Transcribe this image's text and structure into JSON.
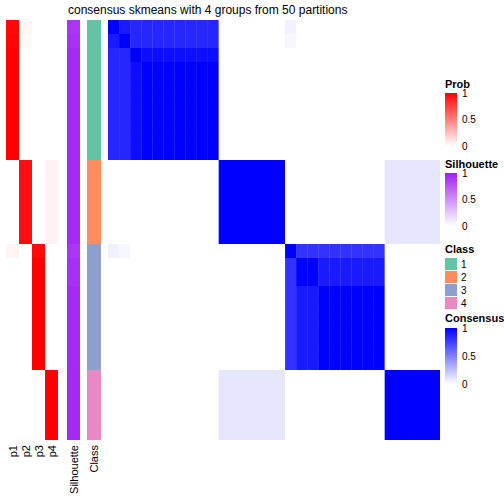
{
  "chart_data": {
    "type": "heatmap",
    "title": "consensus skmeans with 4 groups from 50 partitions",
    "annotation_labels": [
      "p1",
      "p2",
      "p3",
      "p4",
      "Silhouette",
      "Class"
    ],
    "prob": [
      [
        0.97,
        0.03,
        0,
        0
      ],
      [
        0.98,
        0.02,
        0,
        0
      ],
      [
        1,
        0,
        0,
        0
      ],
      [
        1,
        0,
        0,
        0
      ],
      [
        1,
        0,
        0,
        0
      ],
      [
        1,
        0,
        0,
        0
      ],
      [
        1,
        0,
        0,
        0
      ],
      [
        1,
        0,
        0,
        0
      ],
      [
        1,
        0,
        0,
        0
      ],
      [
        1,
        0,
        0,
        0
      ],
      [
        0,
        0.95,
        0,
        0.05
      ],
      [
        0,
        0.95,
        0,
        0.05
      ],
      [
        0,
        0.95,
        0,
        0.05
      ],
      [
        0,
        0.95,
        0,
        0.05
      ],
      [
        0,
        0.95,
        0,
        0.05
      ],
      [
        0,
        0.95,
        0,
        0.05
      ],
      [
        0.04,
        0,
        0.96,
        0
      ],
      [
        0,
        0,
        1,
        0
      ],
      [
        0,
        0,
        1,
        0
      ],
      [
        0,
        0,
        1,
        0
      ],
      [
        0,
        0,
        1,
        0
      ],
      [
        0,
        0,
        1,
        0
      ],
      [
        0,
        0,
        1,
        0
      ],
      [
        0,
        0,
        1,
        0
      ],
      [
        0,
        0,
        1,
        0
      ],
      [
        0,
        0,
        0,
        1
      ],
      [
        0,
        0,
        0,
        1
      ],
      [
        0,
        0,
        0,
        1
      ],
      [
        0,
        0,
        0,
        1
      ],
      [
        0,
        0,
        0,
        1
      ]
    ],
    "silhouette": [
      0.9,
      0.92,
      0.95,
      0.95,
      0.95,
      0.95,
      0.95,
      0.95,
      0.95,
      0.95,
      0.95,
      0.95,
      0.95,
      0.95,
      0.95,
      0.95,
      0.9,
      0.93,
      0.93,
      0.95,
      0.95,
      0.95,
      0.95,
      0.95,
      0.95,
      0.96,
      0.96,
      0.96,
      0.96,
      0.96
    ],
    "class": [
      1,
      1,
      1,
      1,
      1,
      1,
      1,
      1,
      1,
      1,
      2,
      2,
      2,
      2,
      2,
      2,
      3,
      3,
      3,
      3,
      3,
      3,
      3,
      3,
      3,
      4,
      4,
      4,
      4,
      4
    ],
    "consensus": [
      [
        1,
        0.9,
        0.85,
        0.85,
        0.85,
        0.85,
        0.85,
        0.85,
        0.85,
        0.85,
        0,
        0,
        0,
        0,
        0,
        0,
        0.05,
        0,
        0,
        0,
        0,
        0,
        0,
        0,
        0,
        0,
        0,
        0,
        0,
        0
      ],
      [
        0.9,
        1,
        0.85,
        0.85,
        0.85,
        0.85,
        0.85,
        0.85,
        0.85,
        0.85,
        0,
        0,
        0,
        0,
        0,
        0,
        0.03,
        0,
        0,
        0,
        0,
        0,
        0,
        0,
        0,
        0,
        0,
        0,
        0,
        0
      ],
      [
        0.85,
        0.85,
        1,
        0.95,
        0.95,
        0.95,
        0.95,
        0.95,
        0.95,
        0.95,
        0,
        0,
        0,
        0,
        0,
        0,
        0,
        0,
        0,
        0,
        0,
        0,
        0,
        0,
        0,
        0,
        0,
        0,
        0,
        0
      ],
      [
        0.85,
        0.85,
        0.95,
        1,
        1,
        1,
        1,
        1,
        1,
        1,
        0,
        0,
        0,
        0,
        0,
        0,
        0,
        0,
        0,
        0,
        0,
        0,
        0,
        0,
        0,
        0,
        0,
        0,
        0,
        0
      ],
      [
        0.85,
        0.85,
        0.95,
        1,
        1,
        1,
        1,
        1,
        1,
        1,
        0,
        0,
        0,
        0,
        0,
        0,
        0,
        0,
        0,
        0,
        0,
        0,
        0,
        0,
        0,
        0,
        0,
        0,
        0,
        0
      ],
      [
        0.85,
        0.85,
        0.95,
        1,
        1,
        1,
        1,
        1,
        1,
        1,
        0,
        0,
        0,
        0,
        0,
        0,
        0,
        0,
        0,
        0,
        0,
        0,
        0,
        0,
        0,
        0,
        0,
        0,
        0,
        0
      ],
      [
        0.85,
        0.85,
        0.95,
        1,
        1,
        1,
        1,
        1,
        1,
        1,
        0,
        0,
        0,
        0,
        0,
        0,
        0,
        0,
        0,
        0,
        0,
        0,
        0,
        0,
        0,
        0,
        0,
        0,
        0,
        0
      ],
      [
        0.85,
        0.85,
        0.95,
        1,
        1,
        1,
        1,
        1,
        1,
        1,
        0,
        0,
        0,
        0,
        0,
        0,
        0,
        0,
        0,
        0,
        0,
        0,
        0,
        0,
        0,
        0,
        0,
        0,
        0,
        0
      ],
      [
        0.85,
        0.85,
        0.95,
        1,
        1,
        1,
        1,
        1,
        1,
        1,
        0,
        0,
        0,
        0,
        0,
        0,
        0,
        0,
        0,
        0,
        0,
        0,
        0,
        0,
        0,
        0,
        0,
        0,
        0,
        0
      ],
      [
        0.85,
        0.85,
        0.95,
        1,
        1,
        1,
        1,
        1,
        1,
        1,
        0,
        0,
        0,
        0,
        0,
        0,
        0,
        0,
        0,
        0,
        0,
        0,
        0,
        0,
        0,
        0,
        0,
        0,
        0,
        0
      ],
      [
        0,
        0,
        0,
        0,
        0,
        0,
        0,
        0,
        0,
        0,
        1,
        1,
        1,
        1,
        1,
        1,
        0,
        0,
        0,
        0,
        0,
        0,
        0,
        0,
        0,
        0.1,
        0.1,
        0.1,
        0.1,
        0.1
      ],
      [
        0,
        0,
        0,
        0,
        0,
        0,
        0,
        0,
        0,
        0,
        1,
        1,
        1,
        1,
        1,
        1,
        0,
        0,
        0,
        0,
        0,
        0,
        0,
        0,
        0,
        0.1,
        0.1,
        0.1,
        0.1,
        0.1
      ],
      [
        0,
        0,
        0,
        0,
        0,
        0,
        0,
        0,
        0,
        0,
        1,
        1,
        1,
        1,
        1,
        1,
        0,
        0,
        0,
        0,
        0,
        0,
        0,
        0,
        0,
        0.1,
        0.1,
        0.1,
        0.1,
        0.1
      ],
      [
        0,
        0,
        0,
        0,
        0,
        0,
        0,
        0,
        0,
        0,
        1,
        1,
        1,
        1,
        1,
        1,
        0,
        0,
        0,
        0,
        0,
        0,
        0,
        0,
        0,
        0.1,
        0.1,
        0.1,
        0.1,
        0.1
      ],
      [
        0,
        0,
        0,
        0,
        0,
        0,
        0,
        0,
        0,
        0,
        1,
        1,
        1,
        1,
        1,
        1,
        0,
        0,
        0,
        0,
        0,
        0,
        0,
        0,
        0,
        0.1,
        0.1,
        0.1,
        0.1,
        0.1
      ],
      [
        0,
        0,
        0,
        0,
        0,
        0,
        0,
        0,
        0,
        0,
        1,
        1,
        1,
        1,
        1,
        1,
        0,
        0,
        0,
        0,
        0,
        0,
        0,
        0,
        0,
        0.1,
        0.1,
        0.1,
        0.1,
        0.1
      ],
      [
        0.05,
        0.03,
        0,
        0,
        0,
        0,
        0,
        0,
        0,
        0,
        0,
        0,
        0,
        0,
        0,
        0,
        1,
        0.8,
        0.8,
        0.8,
        0.8,
        0.8,
        0.8,
        0.8,
        0.8,
        0,
        0,
        0,
        0,
        0
      ],
      [
        0,
        0,
        0,
        0,
        0,
        0,
        0,
        0,
        0,
        0,
        0,
        0,
        0,
        0,
        0,
        0,
        0.8,
        1,
        1,
        0.9,
        0.9,
        0.9,
        0.9,
        0.9,
        0.9,
        0,
        0,
        0,
        0,
        0
      ],
      [
        0,
        0,
        0,
        0,
        0,
        0,
        0,
        0,
        0,
        0,
        0,
        0,
        0,
        0,
        0,
        0,
        0.8,
        1,
        1,
        0.9,
        0.9,
        0.9,
        0.9,
        0.9,
        0.9,
        0,
        0,
        0,
        0,
        0
      ],
      [
        0,
        0,
        0,
        0,
        0,
        0,
        0,
        0,
        0,
        0,
        0,
        0,
        0,
        0,
        0,
        0,
        0.8,
        0.9,
        0.9,
        1,
        1,
        1,
        1,
        1,
        1,
        0,
        0,
        0,
        0,
        0
      ],
      [
        0,
        0,
        0,
        0,
        0,
        0,
        0,
        0,
        0,
        0,
        0,
        0,
        0,
        0,
        0,
        0,
        0.8,
        0.9,
        0.9,
        1,
        1,
        1,
        1,
        1,
        1,
        0,
        0,
        0,
        0,
        0
      ],
      [
        0,
        0,
        0,
        0,
        0,
        0,
        0,
        0,
        0,
        0,
        0,
        0,
        0,
        0,
        0,
        0,
        0.8,
        0.9,
        0.9,
        1,
        1,
        1,
        1,
        1,
        1,
        0,
        0,
        0,
        0,
        0
      ],
      [
        0,
        0,
        0,
        0,
        0,
        0,
        0,
        0,
        0,
        0,
        0,
        0,
        0,
        0,
        0,
        0,
        0.8,
        0.9,
        0.9,
        1,
        1,
        1,
        1,
        1,
        1,
        0,
        0,
        0,
        0,
        0
      ],
      [
        0,
        0,
        0,
        0,
        0,
        0,
        0,
        0,
        0,
        0,
        0,
        0,
        0,
        0,
        0,
        0,
        0.8,
        0.9,
        0.9,
        1,
        1,
        1,
        1,
        1,
        1,
        0,
        0,
        0,
        0,
        0
      ],
      [
        0,
        0,
        0,
        0,
        0,
        0,
        0,
        0,
        0,
        0,
        0,
        0,
        0,
        0,
        0,
        0,
        0.8,
        0.9,
        0.9,
        1,
        1,
        1,
        1,
        1,
        1,
        0,
        0,
        0,
        0,
        0
      ],
      [
        0,
        0,
        0,
        0,
        0,
        0,
        0,
        0,
        0,
        0,
        0.1,
        0.1,
        0.1,
        0.1,
        0.1,
        0.1,
        0,
        0,
        0,
        0,
        0,
        0,
        0,
        0,
        0,
        1,
        1,
        1,
        1,
        1
      ],
      [
        0,
        0,
        0,
        0,
        0,
        0,
        0,
        0,
        0,
        0,
        0.1,
        0.1,
        0.1,
        0.1,
        0.1,
        0.1,
        0,
        0,
        0,
        0,
        0,
        0,
        0,
        0,
        0,
        1,
        1,
        1,
        1,
        1
      ],
      [
        0,
        0,
        0,
        0,
        0,
        0,
        0,
        0,
        0,
        0,
        0.1,
        0.1,
        0.1,
        0.1,
        0.1,
        0.1,
        0,
        0,
        0,
        0,
        0,
        0,
        0,
        0,
        0,
        1,
        1,
        1,
        1,
        1
      ],
      [
        0,
        0,
        0,
        0,
        0,
        0,
        0,
        0,
        0,
        0,
        0.1,
        0.1,
        0.1,
        0.1,
        0.1,
        0.1,
        0,
        0,
        0,
        0,
        0,
        0,
        0,
        0,
        0,
        1,
        1,
        1,
        1,
        1
      ],
      [
        0,
        0,
        0,
        0,
        0,
        0,
        0,
        0,
        0,
        0,
        0.1,
        0.1,
        0.1,
        0.1,
        0.1,
        0.1,
        0,
        0,
        0,
        0,
        0,
        0,
        0,
        0,
        0,
        1,
        1,
        1,
        1,
        1
      ]
    ],
    "legends": [
      {
        "title": "Prob",
        "range": [
          0,
          1
        ],
        "ticks": [
          0,
          0.5,
          1
        ],
        "colors": [
          "#FFFFFF",
          "#FF0000"
        ]
      },
      {
        "title": "Silhouette",
        "range": [
          0,
          1
        ],
        "ticks": [
          0,
          0.5,
          1
        ],
        "colors": [
          "#FFFFFF",
          "#A020F0"
        ]
      },
      {
        "title": "Class",
        "labels": [
          "1",
          "2",
          "3",
          "4"
        ],
        "colors": [
          "#66C2A5",
          "#FC8D62",
          "#8DA0CB",
          "#E78AC3"
        ]
      },
      {
        "title": "Consensus",
        "range": [
          0,
          1
        ],
        "ticks": [
          0,
          0.5,
          1
        ],
        "colors": [
          "#FFFFFF",
          "#0000FF"
        ]
      }
    ]
  }
}
